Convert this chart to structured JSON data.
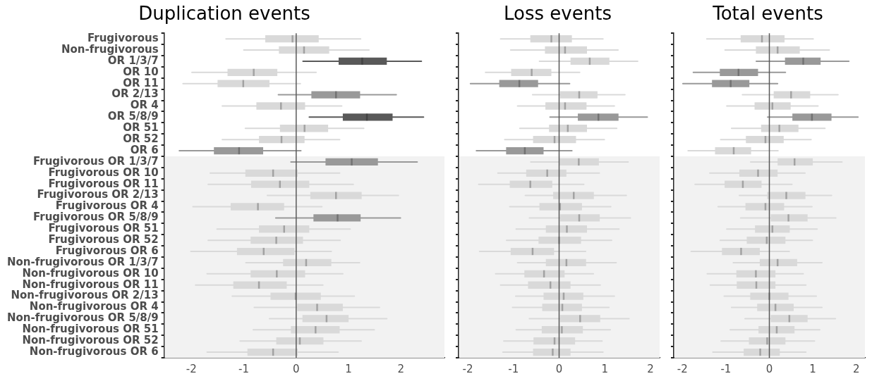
{
  "chart_data": [
    {
      "type": "box",
      "title": "Duplication events",
      "orientation": "horizontal",
      "categories": [
        "Frugivorous",
        "Non-frugivorous",
        "OR 1/3/7",
        "OR 10",
        "OR 11",
        "OR 2/13",
        "OR 4",
        "OR 5/8/9",
        "OR 51",
        "OR 52",
        "OR 6",
        "Frugivorous OR 1/3/7",
        "Frugivorous OR 10",
        "Frugivorous OR 11",
        "Frugivorous OR 2/13",
        "Frugivorous OR 4",
        "Frugivorous OR 5/8/9",
        "Frugivorous OR 51",
        "Frugivorous OR 52",
        "Frugivorous OR 6",
        "Non-frugivorous OR 1/3/7",
        "Non-frugivorous OR 10",
        "Non-frugivorous OR 11",
        "Non-frugivorous OR 2/13",
        "Non-frugivorous OR 4",
        "Non-frugivorous OR 5/8/9",
        "Non-frugivorous OR 51",
        "Non-frugivorous OR 52",
        "Non-frugivorous OR 6"
      ],
      "boxes": [
        {
          "low": -1.34,
          "q1": -0.59,
          "median": -0.07,
          "q3": 0.43,
          "high": 1.23
        },
        {
          "low": -1.0,
          "q1": -0.33,
          "median": 0.15,
          "q3": 0.63,
          "high": 1.39
        },
        {
          "low": 0.13,
          "q1": 0.81,
          "median": 1.26,
          "q3": 1.73,
          "high": 2.39
        },
        {
          "low": -1.99,
          "q1": -1.31,
          "median": -0.81,
          "q3": -0.36,
          "high": 0.38
        },
        {
          "low": -2.16,
          "q1": -1.5,
          "median": -1.01,
          "q3": -0.51,
          "high": 0.08
        },
        {
          "low": -0.34,
          "q1": 0.29,
          "median": 0.76,
          "q3": 1.22,
          "high": 1.91
        },
        {
          "low": -1.41,
          "q1": -0.76,
          "median": -0.29,
          "q3": 0.17,
          "high": 0.87
        },
        {
          "low": 0.25,
          "q1": 0.89,
          "median": 1.35,
          "q3": 1.84,
          "high": 2.43
        },
        {
          "low": -0.97,
          "q1": -0.31,
          "median": 0.16,
          "q3": 0.61,
          "high": 1.29
        },
        {
          "low": -1.41,
          "q1": -0.71,
          "median": -0.28,
          "q3": 0.16,
          "high": 0.83
        },
        {
          "low": -2.23,
          "q1": -1.57,
          "median": -1.09,
          "q3": -0.63,
          "high": 0.09
        },
        {
          "low": -0.1,
          "q1": 0.56,
          "median": 1.06,
          "q3": 1.56,
          "high": 2.31
        },
        {
          "low": -1.64,
          "q1": -0.97,
          "median": -0.44,
          "q3": 0.03,
          "high": 0.83
        },
        {
          "low": -1.68,
          "q1": -0.86,
          "median": -0.31,
          "q3": 0.25,
          "high": 1.09
        },
        {
          "low": -0.55,
          "q1": 0.27,
          "median": 0.76,
          "q3": 1.25,
          "high": 1.95
        },
        {
          "low": -1.97,
          "q1": -1.25,
          "median": -0.73,
          "q3": -0.23,
          "high": 0.49
        },
        {
          "low": -0.39,
          "q1": 0.33,
          "median": 0.79,
          "q3": 1.23,
          "high": 1.99
        },
        {
          "low": -1.51,
          "q1": -0.71,
          "median": -0.23,
          "q3": 0.25,
          "high": 1.03
        },
        {
          "low": -1.68,
          "q1": -0.87,
          "median": -0.38,
          "q3": 0.13,
          "high": 0.84
        },
        {
          "low": -2.01,
          "q1": -1.13,
          "median": -0.62,
          "q3": -0.03,
          "high": 0.67
        },
        {
          "low": -0.96,
          "q1": -0.25,
          "median": 0.19,
          "q3": 0.67,
          "high": 1.21
        },
        {
          "low": -1.7,
          "q1": -0.87,
          "median": -0.37,
          "q3": 0.17,
          "high": 0.89
        },
        {
          "low": -1.92,
          "q1": -1.2,
          "median": -0.71,
          "q3": -0.18,
          "high": 0.51
        },
        {
          "low": -1.22,
          "q1": -0.49,
          "median": -0.01,
          "q3": 0.47,
          "high": 1.11
        },
        {
          "low": -0.8,
          "q1": 0.02,
          "median": 0.4,
          "q3": 0.89,
          "high": 1.59
        },
        {
          "low": -0.51,
          "q1": 0.12,
          "median": 0.58,
          "q3": 1.0,
          "high": 1.73
        },
        {
          "low": -0.82,
          "q1": -0.1,
          "median": 0.37,
          "q3": 0.83,
          "high": 1.49
        },
        {
          "low": -1.07,
          "q1": -0.38,
          "median": 0.07,
          "q3": 0.52,
          "high": 1.24
        },
        {
          "low": -1.7,
          "q1": -0.93,
          "median": -0.44,
          "q3": 0.03,
          "high": 0.8
        }
      ],
      "colors": [
        "#d9d9d9",
        "#d9d9d9",
        "#595959",
        "#d9d9d9",
        "#d9d9d9",
        "#999999",
        "#d9d9d9",
        "#595959",
        "#d9d9d9",
        "#d9d9d9",
        "#999999",
        "#999999",
        "#d9d9d9",
        "#d9d9d9",
        "#d9d9d9",
        "#d9d9d9",
        "#999999",
        "#d9d9d9",
        "#d9d9d9",
        "#d9d9d9",
        "#d9d9d9",
        "#d9d9d9",
        "#d9d9d9",
        "#d9d9d9",
        "#d9d9d9",
        "#d9d9d9",
        "#d9d9d9",
        "#d9d9d9",
        "#d9d9d9"
      ],
      "xlim": [
        -2.52,
        2.83
      ],
      "xticks": [
        -2,
        -1,
        0,
        1,
        2
      ],
      "ref_lines": [
        {
          "axis": "x",
          "value": 0,
          "color": "#595959"
        }
      ],
      "bands": [
        {
          "axis": "y",
          "from": "Frugivorous OR 1/3/7",
          "to": "Non-frugivorous OR 6",
          "color": "#f2f2f2"
        }
      ]
    },
    {
      "type": "box",
      "title": "Loss events",
      "orientation": "horizontal",
      "tick_labels": "x",
      "categories": [
        "Frugivorous",
        "Non-frugivorous",
        "OR 1/3/7",
        "OR 10",
        "OR 11",
        "OR 2/13",
        "OR 4",
        "OR 5/8/9",
        "OR 51",
        "OR 52",
        "OR 6",
        "Frugivorous OR 1/3/7",
        "Frugivorous OR 10",
        "Frugivorous OR 11",
        "Frugivorous OR 2/13",
        "Frugivorous OR 4",
        "Frugivorous OR 5/8/9",
        "Frugivorous OR 51",
        "Frugivorous OR 52",
        "Frugivorous OR 6",
        "Non-frugivorous OR 1/3/7",
        "Non-frugivorous OR 10",
        "Non-frugivorous OR 11",
        "Non-frugivorous OR 2/13",
        "Non-frugivorous OR 4",
        "Non-frugivorous OR 5/8/9",
        "Non-frugivorous OR 51",
        "Non-frugivorous OR 52",
        "Non-frugivorous OR 6"
      ],
      "boxes": [
        {
          "low": -1.28,
          "q1": -0.63,
          "median": -0.17,
          "q3": 0.28,
          "high": 0.96
        },
        {
          "low": -1.06,
          "q1": -0.31,
          "median": 0.13,
          "q3": 0.61,
          "high": 1.29
        },
        {
          "low": -0.43,
          "q1": 0.25,
          "median": 0.67,
          "q3": 1.1,
          "high": 1.72
        },
        {
          "low": -1.61,
          "q1": -1.05,
          "median": -0.6,
          "q3": -0.17,
          "high": 0.45
        },
        {
          "low": -1.94,
          "q1": -1.31,
          "median": -0.87,
          "q3": -0.46,
          "high": 0.23
        },
        {
          "low": -0.58,
          "q1": 0.02,
          "median": 0.44,
          "q3": 0.84,
          "high": 1.44
        },
        {
          "low": -0.91,
          "q1": -0.3,
          "median": 0.13,
          "q3": 0.6,
          "high": 1.21
        },
        {
          "low": -0.2,
          "q1": 0.41,
          "median": 0.86,
          "q3": 1.3,
          "high": 1.93
        },
        {
          "low": -0.86,
          "q1": -0.22,
          "median": 0.19,
          "q3": 0.61,
          "high": 1.26
        },
        {
          "low": -1.19,
          "q1": -0.57,
          "median": -0.1,
          "q3": 0.37,
          "high": 0.99
        },
        {
          "low": -1.81,
          "q1": -1.16,
          "median": -0.75,
          "q3": -0.34,
          "high": 0.28
        },
        {
          "low": -0.62,
          "q1": 0.01,
          "median": 0.43,
          "q3": 0.87,
          "high": 1.51
        },
        {
          "low": -1.34,
          "q1": -0.72,
          "median": -0.26,
          "q3": 0.16,
          "high": 0.88
        },
        {
          "low": -1.76,
          "q1": -1.08,
          "median": -0.63,
          "q3": -0.15,
          "high": 0.54
        },
        {
          "low": -0.74,
          "q1": -0.13,
          "median": 0.32,
          "q3": 0.76,
          "high": 1.47
        },
        {
          "low": -1.08,
          "q1": -0.43,
          "median": 0.02,
          "q3": 0.5,
          "high": 1.13
        },
        {
          "low": -0.65,
          "q1": 0.02,
          "median": 0.44,
          "q3": 0.89,
          "high": 1.56
        },
        {
          "low": -0.94,
          "q1": -0.29,
          "median": 0.17,
          "q3": 0.61,
          "high": 1.31
        },
        {
          "low": -1.15,
          "q1": -0.45,
          "median": 0.0,
          "q3": 0.48,
          "high": 1.15
        },
        {
          "low": -1.74,
          "q1": -1.06,
          "median": -0.58,
          "q3": -0.11,
          "high": 0.58
        },
        {
          "low": -0.91,
          "q1": -0.29,
          "median": 0.16,
          "q3": 0.59,
          "high": 1.25
        },
        {
          "low": -1.39,
          "q1": -0.76,
          "median": -0.33,
          "q3": 0.12,
          "high": 0.75
        },
        {
          "low": -1.28,
          "q1": -0.68,
          "median": -0.19,
          "q3": 0.25,
          "high": 0.9
        },
        {
          "low": -0.95,
          "q1": -0.34,
          "median": 0.1,
          "q3": 0.53,
          "high": 1.21
        },
        {
          "low": -1.02,
          "q1": -0.37,
          "median": 0.07,
          "q3": 0.5,
          "high": 1.09
        },
        {
          "low": -0.65,
          "q1": 0.02,
          "median": 0.46,
          "q3": 0.9,
          "high": 1.53
        },
        {
          "low": -0.94,
          "q1": -0.38,
          "median": 0.06,
          "q3": 0.52,
          "high": 1.12
        },
        {
          "low": -1.21,
          "q1": -0.56,
          "median": -0.1,
          "q3": 0.35,
          "high": 0.94
        },
        {
          "low": -1.23,
          "q1": -0.57,
          "median": -0.14,
          "q3": 0.25,
          "high": 0.96
        }
      ],
      "colors": [
        "#d9d9d9",
        "#d9d9d9",
        "#d9d9d9",
        "#d9d9d9",
        "#999999",
        "#d9d9d9",
        "#d9d9d9",
        "#999999",
        "#d9d9d9",
        "#d9d9d9",
        "#999999",
        "#d9d9d9",
        "#d9d9d9",
        "#d9d9d9",
        "#d9d9d9",
        "#d9d9d9",
        "#d9d9d9",
        "#d9d9d9",
        "#d9d9d9",
        "#d9d9d9",
        "#d9d9d9",
        "#d9d9d9",
        "#d9d9d9",
        "#d9d9d9",
        "#d9d9d9",
        "#d9d9d9",
        "#d9d9d9",
        "#d9d9d9",
        "#d9d9d9"
      ],
      "xlim": [
        -2.2,
        2.2
      ],
      "xticks": [
        -2,
        -1,
        0,
        1,
        2
      ],
      "ref_lines": [
        {
          "axis": "x",
          "value": 0,
          "color": "#595959"
        }
      ],
      "bands": [
        {
          "axis": "y",
          "from": "Frugivorous OR 1/3/7",
          "to": "Non-frugivorous OR 6",
          "color": "#f2f2f2"
        }
      ]
    },
    {
      "type": "box",
      "title": "Total events",
      "orientation": "horizontal",
      "tick_labels": "x",
      "categories": [
        "Frugivorous",
        "Non-frugivorous",
        "OR 1/3/7",
        "OR 10",
        "OR 11",
        "OR 2/13",
        "OR 4",
        "OR 5/8/9",
        "OR 51",
        "OR 52",
        "OR 6",
        "Frugivorous OR 1/3/7",
        "Frugivorous OR 10",
        "Frugivorous OR 11",
        "Frugivorous OR 2/13",
        "Frugivorous OR 4",
        "Frugivorous OR 5/8/9",
        "Frugivorous OR 51",
        "Frugivorous OR 52",
        "Frugivorous OR 6",
        "Non-frugivorous OR 1/3/7",
        "Non-frugivorous OR 10",
        "Non-frugivorous OR 11",
        "Non-frugivorous OR 2/13",
        "Non-frugivorous OR 4",
        "Non-frugivorous OR 5/8/9",
        "Non-frugivorous OR 51",
        "Non-frugivorous OR 52",
        "Non-frugivorous OR 6"
      ],
      "boxes": [
        {
          "low": -1.44,
          "q1": -0.66,
          "median": -0.17,
          "q3": 0.35,
          "high": 1.01
        },
        {
          "low": -1.02,
          "q1": -0.31,
          "median": 0.19,
          "q3": 0.7,
          "high": 1.38
        },
        {
          "low": -0.3,
          "q1": 0.36,
          "median": 0.78,
          "q3": 1.18,
          "high": 1.83
        },
        {
          "low": -1.75,
          "q1": -1.14,
          "median": -0.71,
          "q3": -0.26,
          "high": 0.37
        },
        {
          "low": -1.99,
          "q1": -1.32,
          "median": -0.89,
          "q3": -0.46,
          "high": 0.19
        },
        {
          "low": -0.62,
          "q1": 0.1,
          "median": 0.5,
          "q3": 0.94,
          "high": 1.58
        },
        {
          "low": -0.98,
          "q1": -0.34,
          "median": 0.07,
          "q3": 0.49,
          "high": 1.12
        },
        {
          "low": -0.04,
          "q1": 0.53,
          "median": 0.98,
          "q3": 1.43,
          "high": 2.04
        },
        {
          "low": -0.87,
          "q1": -0.19,
          "median": 0.23,
          "q3": 0.67,
          "high": 1.28
        },
        {
          "low": -1.12,
          "q1": -0.54,
          "median": -0.09,
          "q3": 0.33,
          "high": 0.96
        },
        {
          "low": -1.87,
          "q1": -1.25,
          "median": -0.82,
          "q3": -0.42,
          "high": 0.2
        },
        {
          "low": -0.43,
          "q1": 0.19,
          "median": 0.58,
          "q3": 1.0,
          "high": 1.67
        },
        {
          "low": -1.37,
          "q1": -0.69,
          "median": -0.26,
          "q3": 0.19,
          "high": 0.82
        },
        {
          "low": -1.71,
          "q1": -1.03,
          "median": -0.61,
          "q3": -0.18,
          "high": 0.52
        },
        {
          "low": -0.69,
          "q1": -0.05,
          "median": 0.39,
          "q3": 0.83,
          "high": 1.43
        },
        {
          "low": -1.18,
          "q1": -0.55,
          "median": -0.09,
          "q3": 0.34,
          "high": 0.98
        },
        {
          "low": -0.66,
          "q1": 0.03,
          "median": 0.44,
          "q3": 0.88,
          "high": 1.53
        },
        {
          "low": -0.98,
          "q1": -0.33,
          "median": 0.07,
          "q3": 0.47,
          "high": 1.1
        },
        {
          "low": -1.13,
          "q1": -0.52,
          "median": -0.06,
          "q3": 0.37,
          "high": 0.99
        },
        {
          "low": -1.8,
          "q1": -1.09,
          "median": -0.65,
          "q3": -0.22,
          "high": 0.46
        },
        {
          "low": -0.83,
          "q1": -0.22,
          "median": 0.19,
          "q3": 0.64,
          "high": 1.21
        },
        {
          "low": -1.43,
          "q1": -0.76,
          "median": -0.31,
          "q3": 0.14,
          "high": 0.78
        },
        {
          "low": -1.36,
          "q1": -0.75,
          "median": -0.3,
          "q3": 0.14,
          "high": 0.84
        },
        {
          "low": -1.04,
          "q1": -0.44,
          "median": 0.0,
          "q3": 0.44,
          "high": 1.08
        },
        {
          "low": -0.87,
          "q1": -0.28,
          "median": 0.14,
          "q3": 0.56,
          "high": 1.21
        },
        {
          "low": -0.56,
          "q1": 0.03,
          "median": 0.46,
          "q3": 0.88,
          "high": 1.52
        },
        {
          "low": -0.9,
          "q1": -0.25,
          "median": 0.17,
          "q3": 0.58,
          "high": 1.16
        },
        {
          "low": -1.11,
          "q1": -0.47,
          "median": -0.05,
          "q3": 0.37,
          "high": 1.04
        },
        {
          "low": -1.3,
          "q1": -0.59,
          "median": -0.21,
          "q3": 0.24,
          "high": 0.84
        }
      ],
      "colors": [
        "#d9d9d9",
        "#d9d9d9",
        "#999999",
        "#999999",
        "#999999",
        "#d9d9d9",
        "#d9d9d9",
        "#999999",
        "#d9d9d9",
        "#d9d9d9",
        "#d9d9d9",
        "#d9d9d9",
        "#d9d9d9",
        "#d9d9d9",
        "#d9d9d9",
        "#d9d9d9",
        "#d9d9d9",
        "#d9d9d9",
        "#d9d9d9",
        "#d9d9d9",
        "#d9d9d9",
        "#d9d9d9",
        "#d9d9d9",
        "#d9d9d9",
        "#d9d9d9",
        "#d9d9d9",
        "#d9d9d9",
        "#d9d9d9",
        "#d9d9d9"
      ],
      "xlim": [
        -2.2,
        2.2
      ],
      "xticks": [
        -2,
        -1,
        0,
        1,
        2
      ],
      "ref_lines": [
        {
          "axis": "x",
          "value": 0,
          "color": "#595959"
        }
      ],
      "bands": [
        {
          "axis": "y",
          "from": "Frugivorous OR 1/3/7",
          "to": "Non-frugivorous OR 6",
          "color": "#f2f2f2"
        }
      ]
    }
  ]
}
